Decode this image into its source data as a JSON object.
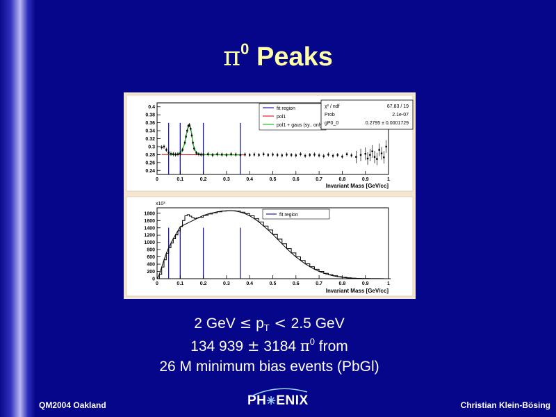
{
  "slide": {
    "title_symbol": "π",
    "title_superscript": "0",
    "title_text": "Peaks"
  },
  "body": {
    "line1_a": "2 GeV ",
    "line1_leq": "≤",
    "line1_p": " p",
    "line1_sub": "T",
    "line1_lt": " < ",
    "line1_b": "2.5 GeV",
    "line2_a": "134 939 ",
    "line2_pm": "±",
    "line2_b": " 3184 ",
    "line2_pi": "π",
    "line2_sup": "0",
    "line2_c": " from",
    "line3": "26 M minimum bias events (PbGl)"
  },
  "footer": {
    "left": "QM2004 Oakland",
    "logo_a": "PH",
    "logo_b": "ENIX",
    "right": "Christian Klein-Bösing"
  },
  "colors": {
    "background": "#06068a",
    "title": "#ffffa8",
    "text": "#ffffff",
    "plot_frame": "#f5e6d0",
    "fit_lines": "#1a1aa8",
    "pol1": "#e02020",
    "pol1_gaus": "#20c020"
  },
  "chart_data": [
    {
      "type": "line",
      "panel": "top",
      "xlabel": "Invariant Mass [GeV/cc]",
      "xlim": [
        0,
        1
      ],
      "ylim": [
        0.23,
        0.41
      ],
      "xticks": [
        "0",
        "0.1",
        "0.2",
        "0.3",
        "0.4",
        "0.5",
        "0.6",
        "0.7",
        "0.8",
        "0.9",
        "1"
      ],
      "yticks": [
        "0.24",
        "0.26",
        "0.28",
        "0.3",
        "0.32",
        "0.34",
        "0.36",
        "0.38",
        "0.4"
      ],
      "legend": [
        "fit region",
        "pol1",
        "pol1 + gaus (sy.. only)"
      ],
      "stats": [
        {
          "label": "χ² / ndf",
          "value": "67.83 / 19"
        },
        {
          "label": "Prob",
          "value": "2.1e-07"
        },
        {
          "label": "gP0_0",
          "value": "0.2795 ± 0.0001729"
        }
      ],
      "fit_region_lines_x": [
        0.05,
        0.1,
        0.2,
        0.36
      ],
      "points_x": [
        0.02,
        0.03,
        0.04,
        0.05,
        0.06,
        0.07,
        0.08,
        0.09,
        0.1,
        0.11,
        0.12,
        0.125,
        0.13,
        0.135,
        0.14,
        0.145,
        0.15,
        0.155,
        0.16,
        0.17,
        0.18,
        0.19,
        0.2,
        0.22,
        0.24,
        0.26,
        0.28,
        0.3,
        0.32,
        0.34,
        0.36,
        0.38,
        0.4,
        0.42,
        0.44,
        0.46,
        0.48,
        0.5,
        0.52,
        0.54,
        0.56,
        0.58,
        0.6,
        0.62,
        0.64,
        0.66,
        0.68,
        0.7,
        0.72,
        0.74,
        0.76,
        0.78,
        0.8,
        0.82,
        0.84,
        0.86,
        0.88,
        0.9,
        0.91,
        0.92,
        0.93,
        0.94,
        0.95,
        0.96,
        0.97,
        0.98,
        0.99
      ],
      "points_y": [
        0.298,
        0.3,
        0.292,
        0.285,
        0.282,
        0.281,
        0.28,
        0.281,
        0.283,
        0.292,
        0.31,
        0.325,
        0.34,
        0.352,
        0.354,
        0.345,
        0.328,
        0.31,
        0.295,
        0.284,
        0.281,
        0.28,
        0.28,
        0.281,
        0.279,
        0.281,
        0.28,
        0.279,
        0.281,
        0.28,
        0.279,
        0.28,
        0.279,
        0.28,
        0.279,
        0.281,
        0.279,
        0.28,
        0.279,
        0.278,
        0.28,
        0.279,
        0.278,
        0.281,
        0.277,
        0.279,
        0.28,
        0.278,
        0.276,
        0.28,
        0.277,
        0.279,
        0.275,
        0.281,
        0.278,
        0.274,
        0.279,
        0.282,
        0.27,
        0.279,
        0.288,
        0.274,
        0.269,
        0.292,
        0.283,
        0.273,
        0.3
      ],
      "pol1_fit": {
        "x": [
          0.02,
          0.38
        ],
        "y": [
          0.2802,
          0.2794
        ]
      },
      "gaus_fit_x": [
        0.05,
        0.07,
        0.09,
        0.1,
        0.11,
        0.12,
        0.125,
        0.13,
        0.135,
        0.14,
        0.145,
        0.15,
        0.155,
        0.16,
        0.17,
        0.18,
        0.2,
        0.25,
        0.3,
        0.36
      ],
      "gaus_fit_y": [
        0.28,
        0.28,
        0.281,
        0.284,
        0.292,
        0.31,
        0.325,
        0.34,
        0.351,
        0.355,
        0.347,
        0.33,
        0.31,
        0.296,
        0.284,
        0.281,
        0.28,
        0.28,
        0.2797,
        0.2795
      ]
    },
    {
      "type": "bar",
      "panel": "bottom",
      "xlabel": "Invariant Mass [GeV/cc]",
      "y_multiplier": "x10³",
      "xlim": [
        0,
        1
      ],
      "ylim": [
        0,
        1950
      ],
      "xticks": [
        "0",
        "0.1",
        "0.2",
        "0.3",
        "0.4",
        "0.5",
        "0.6",
        "0.7",
        "0.8",
        "0.9",
        "1"
      ],
      "yticks": [
        "0",
        "200",
        "400",
        "600",
        "800",
        "1000",
        "1200",
        "1400",
        "1600",
        "1800"
      ],
      "legend": [
        "fit region"
      ],
      "fit_region_lines_x": [
        0.05,
        0.1,
        0.2,
        0.36
      ],
      "x": [
        0.0,
        0.01,
        0.02,
        0.03,
        0.04,
        0.05,
        0.06,
        0.07,
        0.08,
        0.09,
        0.1,
        0.11,
        0.12,
        0.13,
        0.14,
        0.15,
        0.16,
        0.17,
        0.18,
        0.2,
        0.22,
        0.24,
        0.26,
        0.28,
        0.3,
        0.32,
        0.34,
        0.36,
        0.38,
        0.4,
        0.42,
        0.44,
        0.46,
        0.48,
        0.5,
        0.52,
        0.54,
        0.56,
        0.58,
        0.6,
        0.62,
        0.64,
        0.66,
        0.68,
        0.7,
        0.72,
        0.74,
        0.76,
        0.78,
        0.8,
        0.82,
        0.84,
        0.86,
        0.88,
        0.9,
        0.92,
        0.94,
        0.96,
        0.98,
        1.0
      ],
      "values": [
        0,
        120,
        320,
        520,
        700,
        850,
        980,
        1100,
        1210,
        1320,
        1430,
        1600,
        1730,
        1760,
        1720,
        1680,
        1660,
        1670,
        1690,
        1740,
        1780,
        1810,
        1840,
        1860,
        1870,
        1870,
        1860,
        1830,
        1790,
        1730,
        1650,
        1560,
        1450,
        1340,
        1220,
        1090,
        960,
        830,
        710,
        600,
        500,
        410,
        330,
        260,
        200,
        150,
        110,
        80,
        55,
        38,
        25,
        16,
        10,
        6,
        4,
        2,
        1,
        1,
        0,
        0
      ]
    }
  ]
}
